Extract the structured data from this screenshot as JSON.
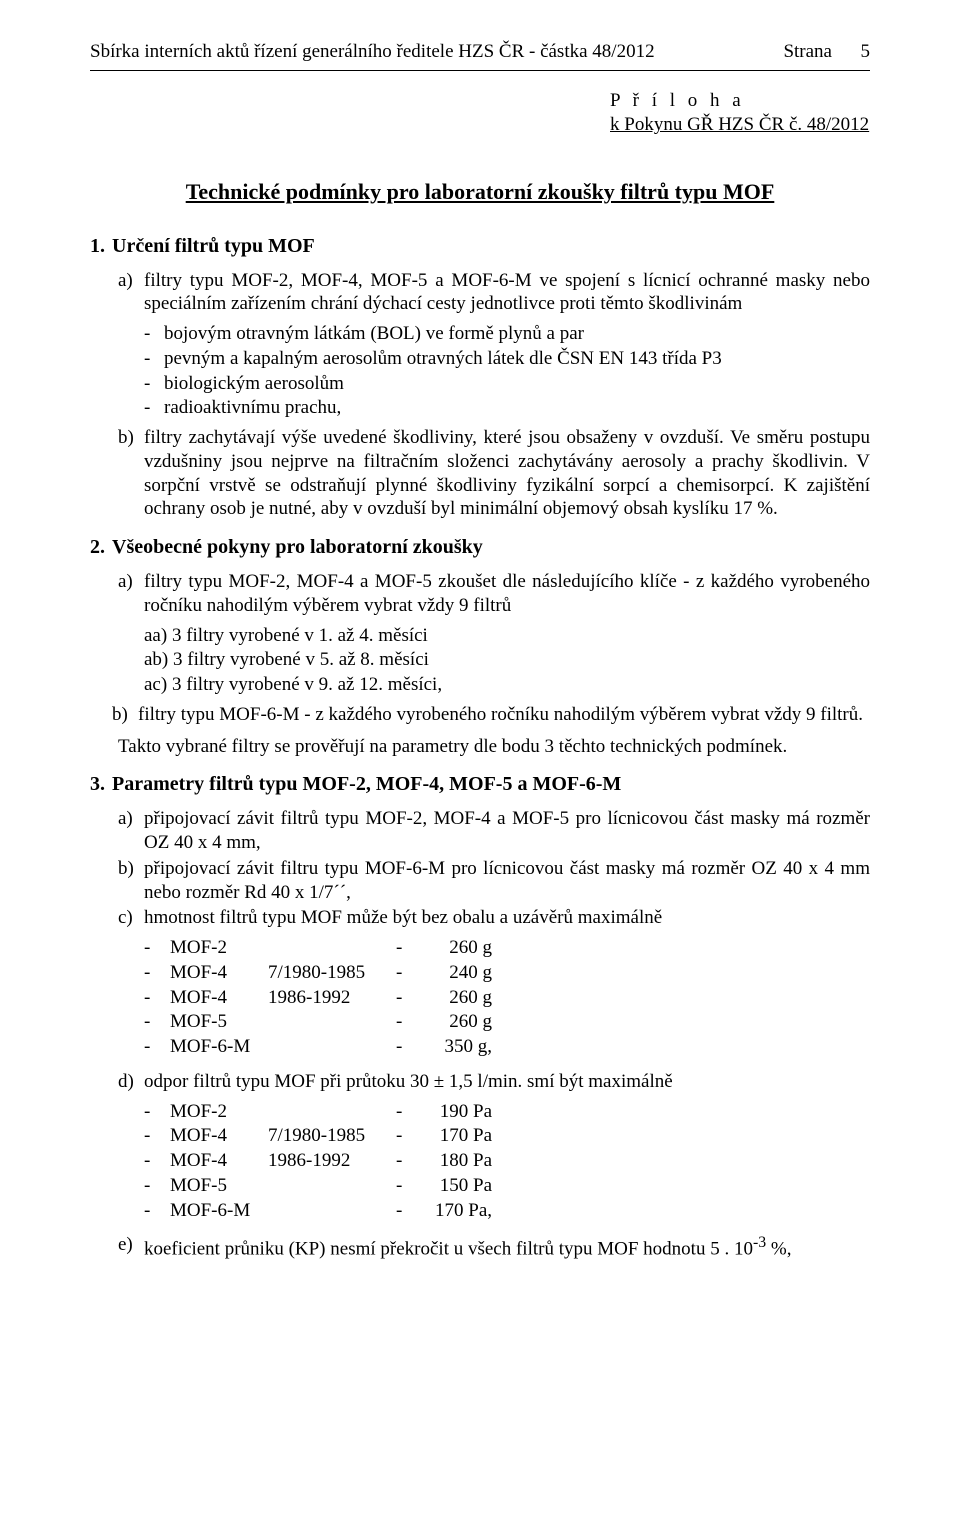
{
  "header": {
    "left": "Sbírka interních aktů řízení generálního ředitele HZS ČR - částka 48/2012",
    "page_label": "Strana",
    "page_number": "5"
  },
  "appendix": {
    "line1": "P ř í l o h a",
    "line2": "k Pokynu GŘ HZS ČR č. 48/2012"
  },
  "title": "Technické podmínky pro laboratorní zkoušky filtrů typu MOF",
  "s1": {
    "head": "Určení filtrů typu MOF",
    "a": "filtry typu MOF-2, MOF-4, MOF-5 a MOF-6-M ve spojení s lícnicí ochranné masky nebo speciálním zařízením chrání dýchací cesty jednotlivce proti těmto škodlivinám",
    "d1": "bojovým otravným látkám (BOL) ve formě plynů a par",
    "d2": "pevným a kapalným aerosolům otravných látek dle ČSN EN 143 třída P3",
    "d3": "biologickým aerosolům",
    "d4": "radioaktivnímu prachu,",
    "b": "filtry zachytávají výše uvedené škodliviny, které jsou obsaženy v ovzduší. Ve směru postupu vzdušniny jsou nejprve na filtračním složenci zachytávány aerosoly a prachy škodlivin. V sorpční vrstvě se odstraňují plynné škodliviny fyzikální sorpcí a chemisorpcí. K zajištění ochrany osob je nutné, aby v ovzduší byl minimální objemový obsah kyslíku 17 %."
  },
  "s2": {
    "head": "Všeobecné pokyny pro laboratorní zkoušky",
    "a": "filtry typu MOF-2, MOF-4 a MOF-5 zkoušet dle následujícího klíče - z každého vyrobeného ročníku nahodilým výběrem vybrat vždy 9 filtrů",
    "aa": "aa) 3 filtry vyrobené v 1. až 4. měsíci",
    "ab": "ab) 3 filtry vyrobené v 5. až 8. měsíci",
    "ac": "ac) 3 filtry vyrobené v 9. až 12. měsíci,",
    "b": "filtry typu MOF-6-M - z každého vyrobeného ročníku nahodilým výběrem vybrat vždy 9 filtrů.",
    "para": "Takto vybrané filtry se prověřují na parametry dle bodu 3 těchto technických podmínek."
  },
  "s3": {
    "head": "Parametry filtrů typu MOF-2, MOF-4, MOF-5 a MOF-6-M",
    "a": "připojovací závit filtrů typu MOF-2, MOF-4 a MOF-5 pro lícnicovou část masky má rozměr OZ 40 x 4 mm,",
    "b": "připojovací závit filtru typu MOF-6-M pro lícnicovou část masky má rozměr OZ 40 x 4 mm nebo rozměr Rd 40 x 1/7´´,",
    "c": "hmotnost filtrů typu MOF může být bez obalu a uzávěrů maximálně",
    "weights": [
      {
        "t": "MOF-2",
        "yr": "",
        "v": "260 g"
      },
      {
        "t": "MOF-4",
        "yr": "7/1980-1985",
        "v": "240 g"
      },
      {
        "t": "MOF-4",
        "yr": "1986-1992",
        "v": "260 g"
      },
      {
        "t": "MOF-5",
        "yr": "",
        "v": "260 g"
      },
      {
        "t": "MOF-6-M",
        "yr": "",
        "v": "350 g,"
      }
    ],
    "d": "odpor filtrů typu MOF při průtoku 30 ± 1,5 l/min. smí být maximálně",
    "resist": [
      {
        "t": "MOF-2",
        "yr": "",
        "v": "190 Pa"
      },
      {
        "t": "MOF-4",
        "yr": "7/1980-1985",
        "v": "170 Pa"
      },
      {
        "t": "MOF-4",
        "yr": "1986-1992",
        "v": "180 Pa"
      },
      {
        "t": "MOF-5",
        "yr": "",
        "v": "150 Pa"
      },
      {
        "t": "MOF-6-M",
        "yr": "",
        "v": "170 Pa,"
      }
    ],
    "e_pre": "koeficient průniku (KP) nesmí překročit u všech filtrů typu MOF hodnotu 5 . 10",
    "e_exp": "-3",
    "e_post": " %,"
  }
}
